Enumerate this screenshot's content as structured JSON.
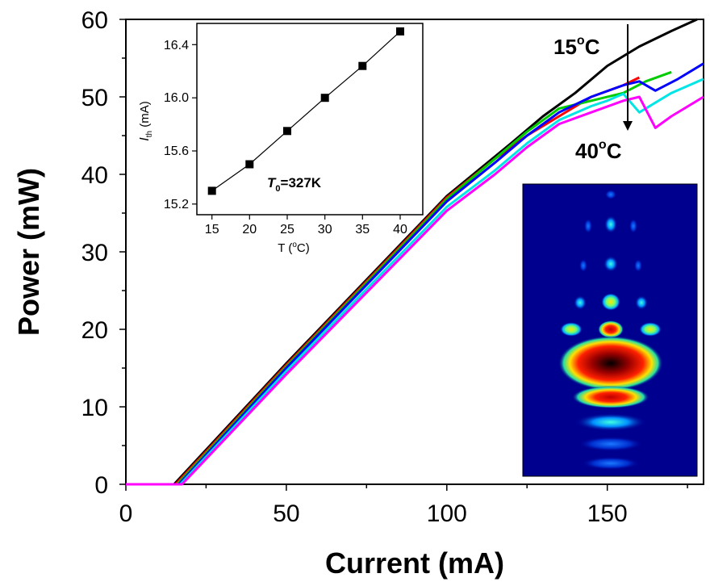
{
  "chart_data": [
    {
      "type": "line",
      "xlabel": "Current (mA)",
      "ylabel": "Power (mW)",
      "xlim": [
        0,
        180
      ],
      "ylim": [
        0,
        60
      ],
      "xticks": [
        "0",
        "50",
        "100",
        "150"
      ],
      "yticks": [
        "0",
        "10",
        "20",
        "30",
        "40",
        "50",
        "60"
      ],
      "grid": false,
      "annotations": [
        "15°C",
        "40°C"
      ],
      "series": [
        {
          "color": "#000000",
          "x": [
            0,
            15,
            50,
            100,
            120,
            130,
            140,
            150,
            160,
            170,
            178
          ],
          "y": [
            0,
            0,
            15.6,
            37.2,
            44,
            47.5,
            50.5,
            54,
            56.5,
            58.5,
            60
          ]
        },
        {
          "color": "#ff0000",
          "x": [
            0,
            15.5,
            50,
            100,
            115,
            125,
            135,
            145,
            155,
            160
          ],
          "y": [
            0,
            0,
            15.4,
            37,
            42,
            45,
            47.5,
            50,
            51.5,
            52.5
          ]
        },
        {
          "color": "#00cc00",
          "x": [
            0,
            16,
            50,
            100,
            115,
            125,
            135,
            145,
            155,
            162,
            170
          ],
          "y": [
            0,
            0,
            15.2,
            36.8,
            42,
            45.5,
            48.5,
            49.5,
            50.5,
            52,
            53.2
          ]
        },
        {
          "color": "#0000ff",
          "x": [
            0,
            16.5,
            50,
            100,
            115,
            125,
            135,
            145,
            155,
            160,
            165,
            172,
            180
          ],
          "y": [
            0,
            0,
            15,
            36.5,
            41.5,
            45,
            48,
            50,
            51.5,
            52,
            50.8,
            52.3,
            54.3
          ]
        },
        {
          "color": "#00e5e5",
          "x": [
            0,
            17,
            50,
            100,
            115,
            125,
            135,
            145,
            150,
            155,
            160,
            170,
            180
          ],
          "y": [
            0,
            0,
            14.6,
            35.8,
            40.5,
            44,
            47,
            48.8,
            49.5,
            50.4,
            48,
            50.5,
            52.3
          ]
        },
        {
          "color": "#ff00ff",
          "x": [
            0,
            17.5,
            50,
            100,
            115,
            125,
            135,
            145,
            155,
            160,
            165,
            170,
            180
          ],
          "y": [
            0,
            0,
            14.2,
            35.3,
            40,
            43.5,
            46.5,
            48,
            49.5,
            50,
            46,
            47.5,
            50
          ]
        }
      ]
    },
    {
      "type": "scatter",
      "xlabel": "T (°C)",
      "ylabel": "I_th (mA)",
      "xlim": [
        13,
        43
      ],
      "ylim": [
        15.12,
        16.56
      ],
      "xticks": [
        "15",
        "20",
        "25",
        "30",
        "35",
        "40"
      ],
      "yticks": [
        "15.2",
        "15.6",
        "16.0",
        "16.4"
      ],
      "x": [
        15,
        20,
        25,
        30,
        35,
        40
      ],
      "y": [
        15.3,
        15.5,
        15.75,
        16.0,
        16.24,
        16.5
      ],
      "fit_line": true,
      "annotation": "T0=327K"
    }
  ],
  "main": {
    "x_title": "Current (mA)",
    "y_title": "Power (mW)",
    "x_ticks": [
      "0",
      "50",
      "100",
      "150"
    ],
    "y_ticks": [
      "0",
      "10",
      "20",
      "30",
      "40",
      "50",
      "60"
    ],
    "annot_top": "15",
    "annot_bottom": "40",
    "annot_unit": "C",
    "degree": "o"
  },
  "inset": {
    "x_title_pre": "T (",
    "x_title_deg": "o",
    "x_title_post": "C)",
    "y_title_sym": "I",
    "y_title_sub": "th",
    "y_title_unit": " (mA)",
    "t0_sym": "T",
    "t0_sub": "0",
    "t0_val": "=327K",
    "x_ticks": [
      "15",
      "20",
      "25",
      "30",
      "35",
      "40"
    ],
    "y_ticks": [
      "15.2",
      "15.6",
      "16.0",
      "16.4"
    ]
  },
  "colors": {
    "mode_background": "#00008f",
    "mode_core": "#b00000"
  }
}
